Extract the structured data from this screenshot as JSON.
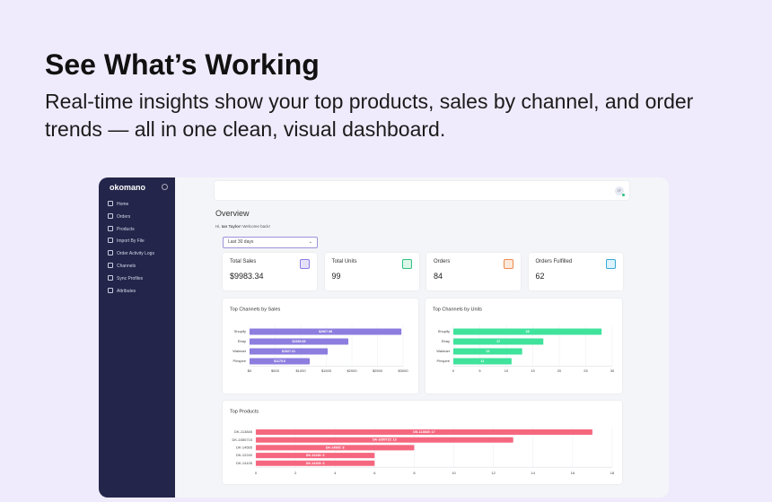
{
  "header": {
    "title": "See What’s Working",
    "subtitle": "Real-time insights show your top products, sales by channel, and order trends — all in one clean, visual dashboard."
  },
  "sidebar": {
    "logo": "okomano",
    "nav": [
      "Home",
      "Orders",
      "Products",
      "Import By File",
      "Order Activity Logs",
      "Channels",
      "Sync Profiles",
      "Attributes"
    ]
  },
  "topbar": {
    "avatar": "IT"
  },
  "overview": {
    "title": "Overview",
    "greeting_prefix": "Hi, ",
    "user": "Ian Taylor",
    "greeting_suffix": "! Welcome back!",
    "range": "Last 30 days"
  },
  "cards": [
    {
      "label": "Total Sales",
      "value": "$9983.34"
    },
    {
      "label": "Total Units",
      "value": "99"
    },
    {
      "label": "Orders",
      "value": "84"
    },
    {
      "label": "Orders Fulfilled",
      "value": "62"
    }
  ],
  "chart_data": [
    {
      "type": "bar",
      "orientation": "horizontal",
      "title": "Top Channels by Sales",
      "categories": [
        "Shopify",
        "Ebay",
        "Walmart",
        "Pinspire"
      ],
      "values": [
        2967.98,
        1930.69,
        1527.21,
        1175.5
      ],
      "value_labels": [
        "$2967.98",
        "$1930.69",
        "$1527.21",
        "$1175.5"
      ],
      "color": "#8c7ddf",
      "xlim": [
        0,
        3000
      ],
      "xticks": [
        {
          "value": 0,
          "label": "$0"
        },
        {
          "value": 500,
          "label": "$500"
        },
        {
          "value": 1000,
          "label": "$1000"
        },
        {
          "value": 1500,
          "label": "$1500"
        },
        {
          "value": 2000,
          "label": "$2000"
        },
        {
          "value": 2500,
          "label": "$2500"
        },
        {
          "value": 3000,
          "label": "$3000"
        }
      ],
      "grid": true
    },
    {
      "type": "bar",
      "orientation": "horizontal",
      "title": "Top Channels by Units",
      "categories": [
        "Shopify",
        "Ebay",
        "Walmart",
        "Pinspire"
      ],
      "values": [
        28,
        17,
        13,
        11
      ],
      "color": "#3fe39c",
      "xlim": [
        0,
        30
      ],
      "xticks": [
        0,
        5,
        10,
        15,
        20,
        25,
        30
      ],
      "grid": true
    },
    {
      "type": "bar",
      "orientation": "horizontal",
      "title": "Top Products",
      "categories": [
        "DK-113845",
        "DK-1650715",
        "DK-14565",
        "DK-12240",
        "DK-14105"
      ],
      "values": [
        17,
        13,
        8,
        6,
        6
      ],
      "value_labels": [
        "DK-113845: 17",
        "DK-1650715: 13",
        "DK-14565: 8",
        "DK-12240: 6",
        "DK-14105: 6"
      ],
      "color": "#f5677f",
      "xlim": [
        0,
        18
      ],
      "xticks": [
        0,
        2,
        4,
        6,
        8,
        10,
        12,
        14,
        16,
        18
      ],
      "grid": true
    }
  ]
}
